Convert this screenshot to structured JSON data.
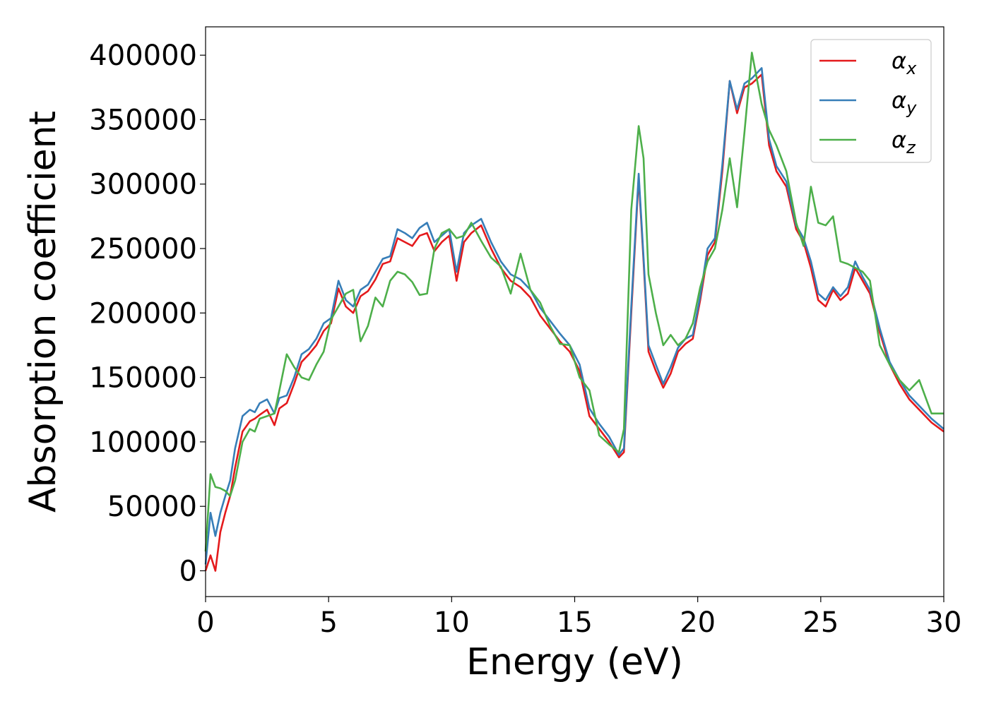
{
  "chart_data": {
    "type": "line",
    "title": "",
    "xlabel": "Energy (eV)",
    "ylabel": "Absorption coefficient",
    "xlim": [
      0,
      30
    ],
    "ylim": [
      -20000,
      422000
    ],
    "xticks": [
      0,
      5,
      10,
      15,
      20,
      25,
      30
    ],
    "yticks": [
      0,
      50000,
      100000,
      150000,
      200000,
      250000,
      300000,
      350000,
      400000
    ],
    "grid": false,
    "legend_position": "top-right",
    "series": [
      {
        "name": "αx",
        "legend_base": "α",
        "legend_sub": "x",
        "color": "#e41a1c",
        "x": [
          0,
          0.2,
          0.4,
          0.6,
          0.8,
          1.0,
          1.2,
          1.5,
          1.8,
          2.0,
          2.2,
          2.5,
          2.8,
          3.0,
          3.3,
          3.6,
          3.9,
          4.2,
          4.5,
          4.8,
          5.1,
          5.4,
          5.7,
          6.0,
          6.3,
          6.6,
          6.9,
          7.2,
          7.5,
          7.8,
          8.1,
          8.4,
          8.7,
          9.0,
          9.3,
          9.6,
          9.9,
          10.2,
          10.5,
          10.8,
          11.2,
          11.6,
          12.0,
          12.4,
          12.8,
          13.2,
          13.6,
          14.0,
          14.4,
          14.8,
          15.2,
          15.6,
          16.0,
          16.4,
          16.8,
          17.0,
          17.3,
          17.6,
          17.8,
          18.0,
          18.3,
          18.6,
          18.9,
          19.2,
          19.5,
          19.8,
          20.1,
          20.4,
          20.7,
          21.0,
          21.3,
          21.6,
          21.9,
          22.2,
          22.6,
          22.9,
          23.2,
          23.6,
          24.0,
          24.3,
          24.6,
          24.9,
          25.2,
          25.5,
          25.8,
          26.1,
          26.4,
          26.7,
          27.0,
          27.4,
          27.8,
          28.2,
          28.6,
          29.0,
          29.5,
          30.0
        ],
        "values": [
          0,
          12000,
          0,
          30000,
          45000,
          58000,
          80000,
          108000,
          116000,
          118000,
          121000,
          125000,
          113000,
          126000,
          130000,
          145000,
          162000,
          168000,
          175000,
          186000,
          192000,
          219000,
          205000,
          200000,
          213000,
          217000,
          226000,
          238000,
          240000,
          258000,
          255000,
          252000,
          260000,
          262000,
          248000,
          255000,
          260000,
          225000,
          255000,
          262000,
          268000,
          250000,
          235000,
          225000,
          220000,
          212000,
          198000,
          188000,
          178000,
          170000,
          155000,
          120000,
          110000,
          100000,
          88000,
          92000,
          200000,
          305000,
          240000,
          170000,
          155000,
          142000,
          153000,
          170000,
          176000,
          180000,
          210000,
          245000,
          255000,
          310000,
          380000,
          355000,
          375000,
          378000,
          385000,
          330000,
          310000,
          298000,
          265000,
          255000,
          235000,
          210000,
          205000,
          218000,
          210000,
          215000,
          235000,
          225000,
          215000,
          185000,
          160000,
          145000,
          133000,
          125000,
          115000,
          108000
        ]
      },
      {
        "name": "αy",
        "legend_base": "α",
        "legend_sub": "y",
        "color": "#377eb8",
        "x": [
          0,
          0.2,
          0.4,
          0.6,
          0.8,
          1.0,
          1.2,
          1.5,
          1.8,
          2.0,
          2.2,
          2.5,
          2.8,
          3.0,
          3.3,
          3.6,
          3.9,
          4.2,
          4.5,
          4.8,
          5.1,
          5.4,
          5.7,
          6.0,
          6.3,
          6.6,
          6.9,
          7.2,
          7.5,
          7.8,
          8.1,
          8.4,
          8.7,
          9.0,
          9.3,
          9.6,
          9.9,
          10.2,
          10.5,
          10.8,
          11.2,
          11.6,
          12.0,
          12.4,
          12.8,
          13.2,
          13.6,
          14.0,
          14.4,
          14.8,
          15.2,
          15.6,
          16.0,
          16.4,
          16.8,
          17.0,
          17.3,
          17.6,
          17.8,
          18.0,
          18.3,
          18.6,
          18.9,
          19.2,
          19.5,
          19.8,
          20.1,
          20.4,
          20.7,
          21.0,
          21.3,
          21.6,
          21.9,
          22.2,
          22.6,
          22.9,
          23.2,
          23.6,
          24.0,
          24.3,
          24.6,
          24.9,
          25.2,
          25.5,
          25.8,
          26.1,
          26.4,
          26.7,
          27.0,
          27.4,
          27.8,
          28.2,
          28.6,
          29.0,
          29.5,
          30.0
        ],
        "values": [
          5000,
          45000,
          27000,
          45000,
          58000,
          70000,
          95000,
          120000,
          125000,
          123000,
          130000,
          133000,
          122000,
          134000,
          136000,
          150000,
          168000,
          172000,
          180000,
          192000,
          196000,
          225000,
          210000,
          205000,
          218000,
          222000,
          232000,
          242000,
          244000,
          265000,
          262000,
          258000,
          266000,
          270000,
          255000,
          260000,
          265000,
          232000,
          262000,
          268000,
          273000,
          255000,
          240000,
          230000,
          226000,
          218000,
          204000,
          194000,
          184000,
          175000,
          160000,
          126000,
          114000,
          104000,
          90000,
          95000,
          205000,
          308000,
          243000,
          175000,
          160000,
          145000,
          158000,
          173000,
          180000,
          183000,
          213000,
          250000,
          258000,
          315000,
          380000,
          358000,
          378000,
          382000,
          390000,
          335000,
          314000,
          302000,
          268000,
          258000,
          240000,
          215000,
          210000,
          220000,
          213000,
          220000,
          240000,
          228000,
          218000,
          188000,
          162000,
          148000,
          136000,
          128000,
          118000,
          110000
        ]
      },
      {
        "name": "αz",
        "legend_base": "α",
        "legend_sub": "z",
        "color": "#4daf4a",
        "x": [
          0,
          0.2,
          0.4,
          0.6,
          0.8,
          1.0,
          1.2,
          1.5,
          1.8,
          2.0,
          2.2,
          2.5,
          2.8,
          3.0,
          3.3,
          3.6,
          3.9,
          4.2,
          4.5,
          4.8,
          5.1,
          5.4,
          5.7,
          6.0,
          6.3,
          6.6,
          6.9,
          7.2,
          7.5,
          7.8,
          8.1,
          8.4,
          8.7,
          9.0,
          9.3,
          9.6,
          9.9,
          10.2,
          10.5,
          10.8,
          11.2,
          11.6,
          12.0,
          12.4,
          12.8,
          13.2,
          13.6,
          14.0,
          14.4,
          14.8,
          15.2,
          15.6,
          16.0,
          16.4,
          16.8,
          17.0,
          17.3,
          17.6,
          17.8,
          18.0,
          18.3,
          18.6,
          18.9,
          19.2,
          19.5,
          19.8,
          20.1,
          20.4,
          20.7,
          21.0,
          21.3,
          21.6,
          21.9,
          22.2,
          22.6,
          22.9,
          23.2,
          23.6,
          24.0,
          24.3,
          24.6,
          24.9,
          25.2,
          25.5,
          25.8,
          26.1,
          26.4,
          26.7,
          27.0,
          27.4,
          27.8,
          28.2,
          28.6,
          29.0,
          29.5,
          30.0
        ],
        "values": [
          15000,
          75000,
          65000,
          64000,
          62000,
          58000,
          70000,
          100000,
          110000,
          108000,
          118000,
          120000,
          122000,
          140000,
          168000,
          158000,
          150000,
          148000,
          160000,
          170000,
          195000,
          205000,
          215000,
          218000,
          178000,
          190000,
          212000,
          205000,
          225000,
          232000,
          230000,
          224000,
          214000,
          215000,
          250000,
          262000,
          265000,
          258000,
          260000,
          270000,
          256000,
          243000,
          236000,
          215000,
          246000,
          218000,
          208000,
          190000,
          176000,
          175000,
          150000,
          140000,
          105000,
          98000,
          92000,
          110000,
          280000,
          345000,
          320000,
          230000,
          200000,
          175000,
          183000,
          175000,
          180000,
          192000,
          220000,
          240000,
          250000,
          280000,
          320000,
          282000,
          340000,
          402000,
          362000,
          342000,
          330000,
          310000,
          270000,
          252000,
          298000,
          270000,
          268000,
          275000,
          240000,
          238000,
          235000,
          232000,
          225000,
          175000,
          160000,
          148000,
          140000,
          148000,
          122000,
          122000
        ]
      }
    ]
  }
}
